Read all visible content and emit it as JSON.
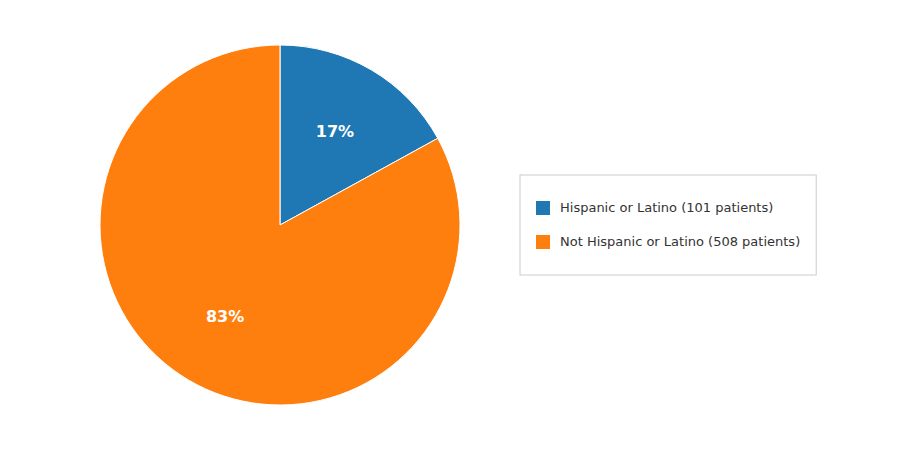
{
  "chart_data": {
    "type": "pie",
    "categories": [
      "Hispanic or Latino (101 patients)",
      "Not Hispanic or Latino (508 patients)"
    ],
    "values": [
      17,
      83
    ],
    "value_labels": [
      "17%",
      "83%"
    ],
    "data_labels": true,
    "legend": "right"
  }
}
